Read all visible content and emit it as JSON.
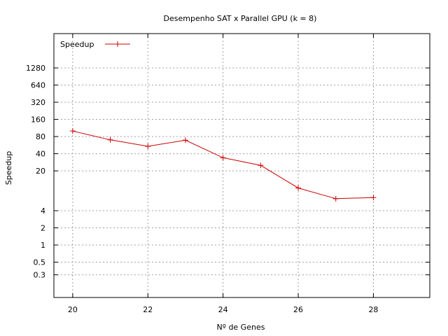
{
  "chart_data": {
    "type": "line",
    "title": "Desempenho SAT x Parallel GPU (k = 8)",
    "xlabel": "Nº de Genes",
    "ylabel": "Speedup",
    "xlim": [
      19.5,
      29.5
    ],
    "ylim": [
      0.12,
      5120
    ],
    "yscale": "log",
    "grid": true,
    "legend_position": "top-left",
    "xticks": [
      20,
      22,
      24,
      26,
      28
    ],
    "yticks": [
      0.3,
      0.5,
      1,
      2,
      4,
      20,
      40,
      80,
      160,
      320,
      640,
      1280
    ],
    "ytick_labels": [
      "0.3",
      "0.5",
      "1",
      "2",
      "4",
      "20",
      "40",
      "80",
      "160",
      "320",
      "640",
      "1280"
    ],
    "series": [
      {
        "name": "Speedup",
        "color": "#cc0000",
        "x": [
          20,
          21,
          22,
          23,
          24,
          25,
          26,
          27,
          28
        ],
        "y": [
          100,
          70,
          54,
          69,
          34,
          25,
          10,
          6.5,
          6.8
        ]
      }
    ]
  }
}
